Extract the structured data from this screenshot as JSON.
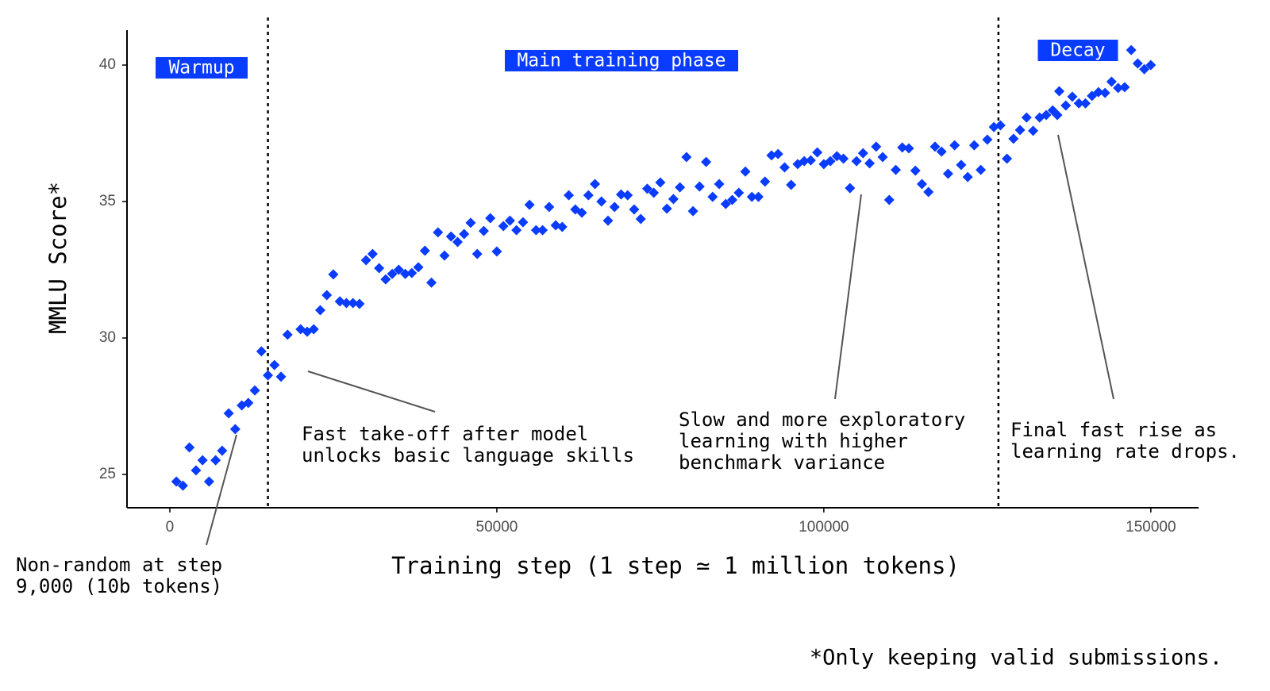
{
  "chart_data": {
    "type": "scatter",
    "x_label": "Training step (1 step ≃ 1 million tokens)",
    "y_label": "MMLU Score*",
    "footnote": "*Only keeping valid submissions.",
    "color": "#0a3cff",
    "marker": "diamond",
    "xlim": [
      -6550,
      157300
    ],
    "ylim": [
      23.78,
      41.28
    ],
    "xticks": [
      0,
      50000,
      100000,
      150000
    ],
    "yticks": [
      25,
      30,
      35,
      40
    ],
    "vlines": [
      15000,
      126700
    ],
    "phase_labels": [
      "Warmup",
      "Main training phase",
      "Decay"
    ],
    "annotations": [
      {
        "lines": [
          "Non-random at step",
          "9,000 (10b tokens)"
        ]
      },
      {
        "lines": [
          "Fast take-off after model",
          "unlocks basic language skills"
        ]
      },
      {
        "lines": [
          "Slow and more exploratory",
          "learning with higher",
          "benchmark variance"
        ]
      },
      {
        "lines": [
          "Final fast rise as",
          "learning rate drops."
        ]
      }
    ],
    "x": [
      1000,
      2000,
      3000,
      4000,
      5000,
      6000,
      7000,
      8000,
      9000,
      10000,
      11000,
      12000,
      13000,
      14000,
      15000,
      16000,
      17000,
      18000,
      20000,
      21000,
      22000,
      23000,
      24000,
      25000,
      26000,
      27000,
      28000,
      29000,
      30000,
      31000,
      32000,
      33000,
      34000,
      35000,
      36000,
      37000,
      38000,
      39000,
      40000,
      41000,
      42000,
      43000,
      44000,
      45000,
      46000,
      47000,
      48000,
      49000,
      50000,
      51000,
      52000,
      53000,
      54000,
      55000,
      56000,
      57000,
      58000,
      59000,
      60000,
      61000,
      62000,
      63000,
      64000,
      65000,
      66000,
      67000,
      68000,
      69000,
      70000,
      71000,
      72000,
      73000,
      74000,
      75000,
      76000,
      77000,
      78000,
      79000,
      80000,
      81000,
      82000,
      83000,
      84000,
      85000,
      86000,
      87000,
      88000,
      89000,
      90000,
      91000,
      92000,
      93000,
      94000,
      95000,
      96000,
      97000,
      98000,
      99000,
      100000,
      101000,
      102000,
      103000,
      104000,
      105000,
      106000,
      107000,
      108000,
      109000,
      110000,
      111000,
      112000,
      113000,
      114000,
      115000,
      116000,
      117000,
      118000,
      119000,
      120000,
      121000,
      122000,
      123000,
      124000,
      125000,
      126000,
      127000,
      128000,
      129000,
      130000,
      131000,
      132000,
      133000,
      134000,
      135000,
      135700,
      136000,
      137000,
      138000,
      139000,
      140000,
      141000,
      142000,
      143000,
      144000,
      145000,
      146000,
      147000,
      148000,
      149000,
      150000
    ],
    "y": [
      24.74,
      24.59,
      25.99,
      25.15,
      25.52,
      24.74,
      25.52,
      25.87,
      27.24,
      26.66,
      27.53,
      27.62,
      28.08,
      29.51,
      28.63,
      29.01,
      28.58,
      30.12,
      30.32,
      30.23,
      30.32,
      31.02,
      31.57,
      32.33,
      31.34,
      31.28,
      31.28,
      31.25,
      32.85,
      33.08,
      32.56,
      32.15,
      32.35,
      32.5,
      32.35,
      32.38,
      32.59,
      33.2,
      32.03,
      33.87,
      33.02,
      33.72,
      33.52,
      33.81,
      34.22,
      33.08,
      33.92,
      34.39,
      33.17,
      34.1,
      34.3,
      33.95,
      34.24,
      34.88,
      33.95,
      33.95,
      34.8,
      34.13,
      34.07,
      35.23,
      34.71,
      34.59,
      35.23,
      35.64,
      35,
      34.3,
      34.8,
      35.26,
      35.23,
      34.71,
      34.36,
      35.47,
      35.32,
      35.7,
      34.74,
      35.09,
      35.52,
      36.63,
      34.65,
      35.55,
      36.45,
      35.17,
      35.64,
      34.91,
      35.06,
      35.32,
      36.1,
      35.17,
      35.17,
      35.73,
      36.69,
      36.74,
      36.25,
      35.61,
      36.37,
      36.48,
      36.51,
      36.8,
      36.37,
      36.48,
      36.66,
      36.57,
      35.49,
      36.48,
      36.77,
      36.4,
      37.01,
      36.63,
      35.06,
      36.16,
      36.98,
      36.95,
      36.13,
      35.64,
      35.35,
      37.01,
      36.83,
      36.02,
      37.06,
      36.34,
      35.9,
      37.06,
      36.16,
      37.27,
      37.73,
      37.79,
      36.57,
      37.3,
      37.62,
      38.08,
      37.59,
      38.08,
      38.17,
      38.34,
      38.17,
      39.04,
      38.52,
      38.84,
      38.6,
      38.6,
      38.87,
      39.01,
      38.98,
      39.39,
      39.16,
      39.19,
      40.55,
      40.06,
      39.85,
      40
    ]
  }
}
